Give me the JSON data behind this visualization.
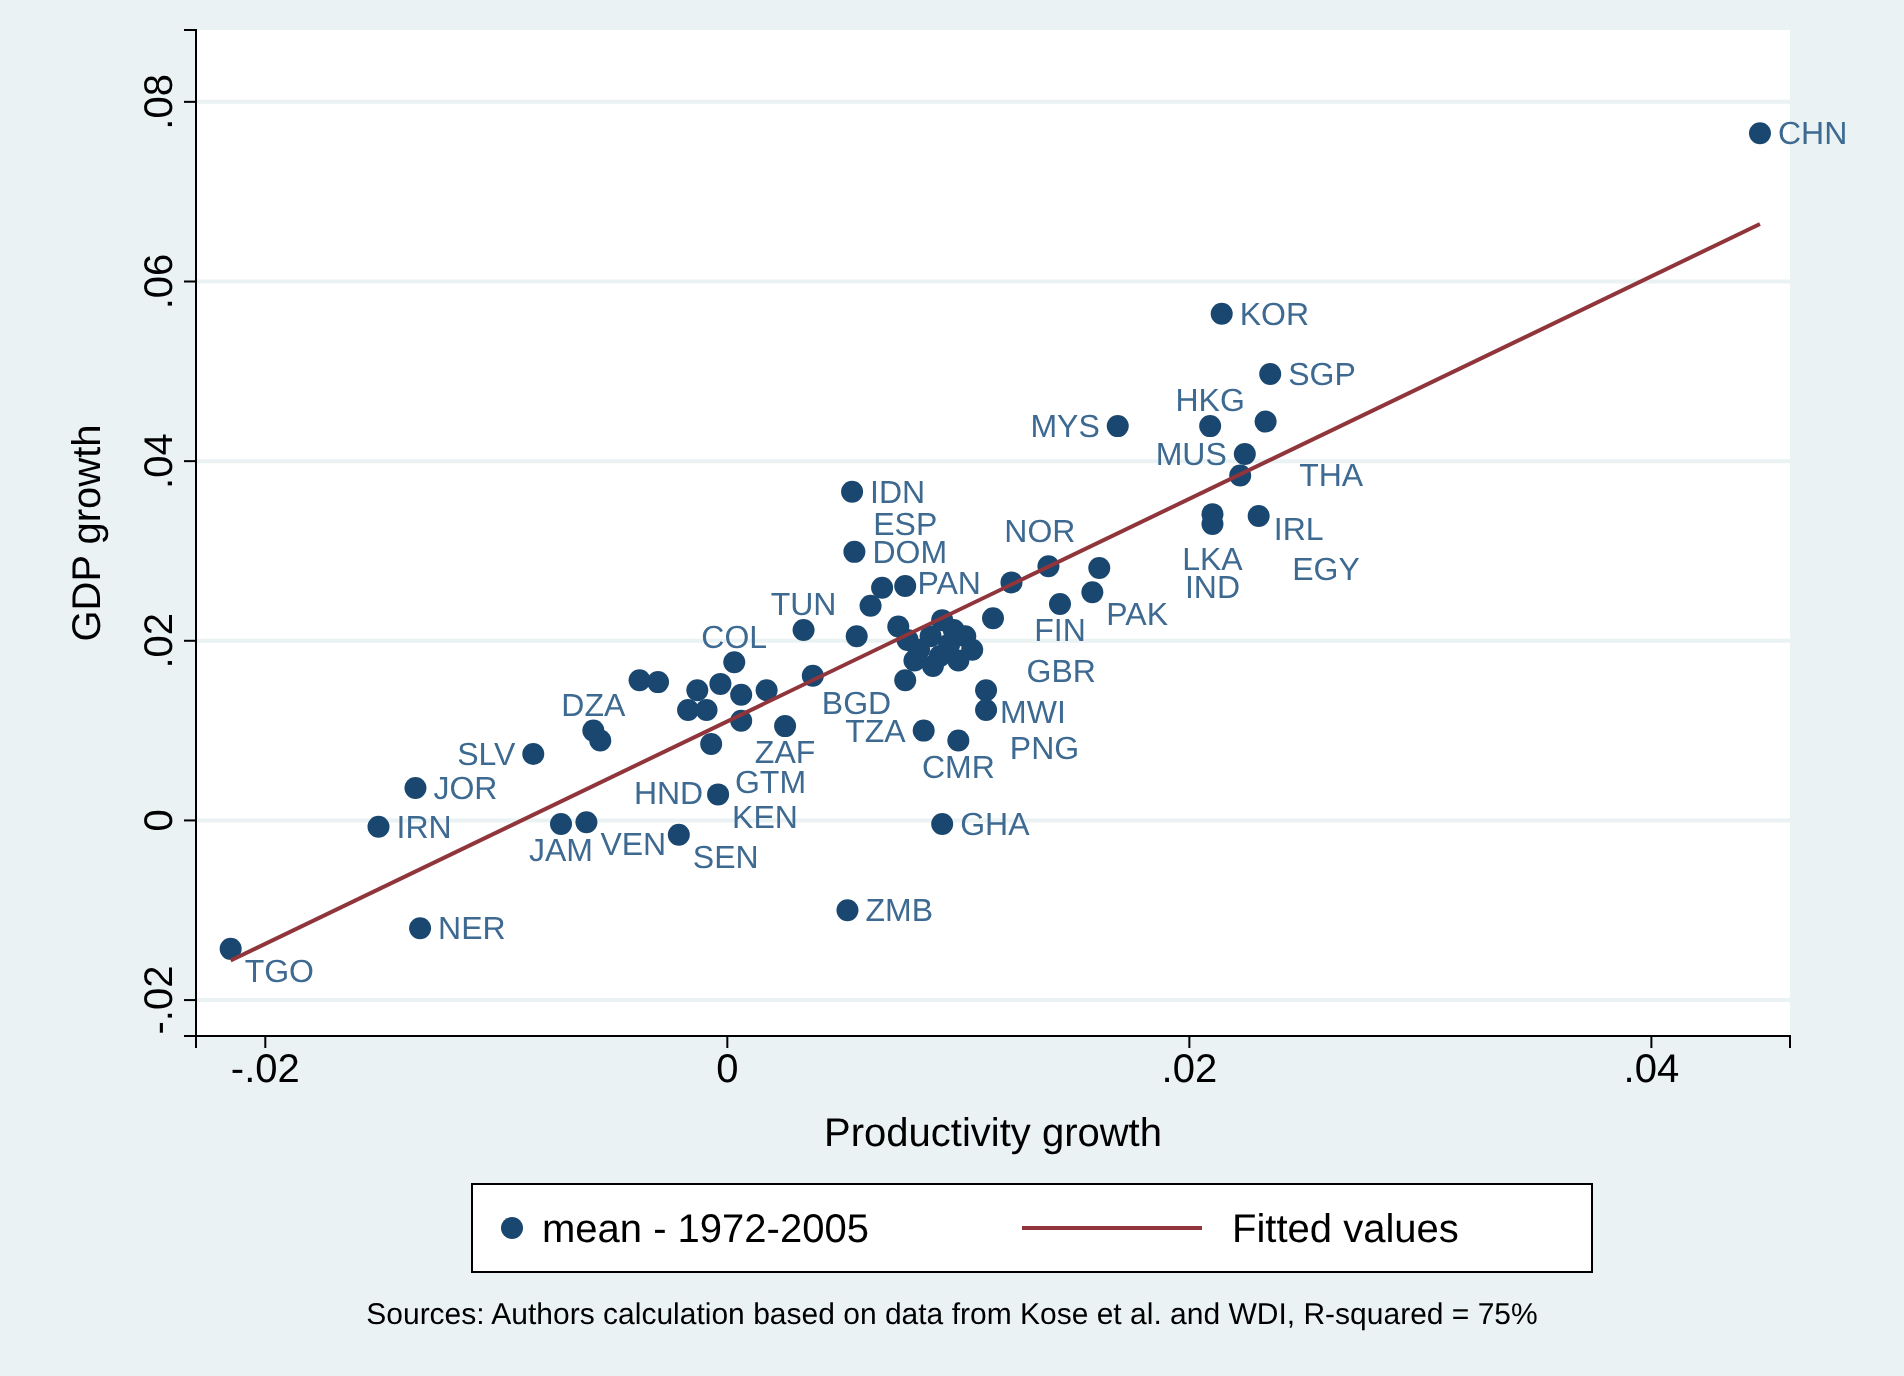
{
  "chart_data": {
    "type": "scatter",
    "xlabel": "Productivity growth",
    "ylabel": "GDP growth",
    "xlim": [
      -0.023,
      0.046
    ],
    "ylim": [
      -0.024,
      0.088
    ],
    "xticks": [
      {
        "value": -0.02,
        "label": "-.02"
      },
      {
        "value": 0,
        "label": "0"
      },
      {
        "value": 0.02,
        "label": ".02"
      },
      {
        "value": 0.04,
        "label": ".04"
      }
    ],
    "yticks": [
      {
        "value": -0.02,
        "label": "-.02"
      },
      {
        "value": 0,
        "label": "0"
      },
      {
        "value": 0.02,
        "label": ".02"
      },
      {
        "value": 0.04,
        "label": ".04"
      },
      {
        "value": 0.06,
        "label": ".06"
      },
      {
        "value": 0.08,
        "label": ".08"
      }
    ],
    "grid": "y",
    "legend": "bottom",
    "annotations": [
      "Sources: Authors calculation based on data from Kose et al. and WDI, R-squared = 75%"
    ],
    "series": [
      {
        "name": "mean - 1972-2005",
        "marker": "circle",
        "color": "#1a476f",
        "x": [
          0.0447,
          0.0214,
          0.0235,
          0.0169,
          0.0209,
          0.0233,
          0.0224,
          0.0222,
          0.021,
          0.021,
          0.023,
          0.0054,
          0.0055,
          0.0161,
          0.0139,
          0.0158,
          0.0123,
          0.0144,
          0.0115,
          0.0112,
          0.0112,
          0.01,
          0.0085,
          0.0077,
          0.0003,
          0.0025,
          -0.0058,
          -0.0055,
          -0.0007,
          -0.0004,
          -0.0084,
          -0.0135,
          -0.0151,
          -0.0215,
          -0.0133,
          -0.0072,
          -0.0061,
          -0.0021,
          0.0052,
          0.0093,
          0.0033,
          0.0056,
          0.0074,
          0.0062,
          0.0067,
          0.0077,
          0.0078,
          0.0083,
          0.0088,
          0.0092,
          0.0096,
          0.01,
          0.0089,
          0.0081,
          0.0103,
          0.0098,
          0.0093,
          0.0106,
          -0.0038,
          -0.003,
          -0.0013,
          -0.0003,
          0.0006,
          0.0017,
          0.0037,
          -0.0017,
          -0.0009,
          0.0006
        ],
        "values": [
          0.0765,
          0.0564,
          0.0497,
          0.0439,
          0.0439,
          0.0444,
          0.0408,
          0.0384,
          0.0341,
          0.033,
          0.0339,
          0.0366,
          0.0299,
          0.0281,
          0.0283,
          0.0254,
          0.0265,
          0.0241,
          0.0225,
          0.0145,
          0.0123,
          0.0089,
          0.01,
          0.0156,
          0.0176,
          0.0105,
          0.01,
          0.0089,
          0.0085,
          0.0029,
          0.0074,
          0.0036,
          -0.0007,
          -0.0143,
          -0.012,
          -0.0004,
          -0.0002,
          -0.0016,
          -0.01,
          -0.0004,
          0.0212,
          0.0205,
          0.0216,
          0.0239,
          0.0259,
          0.0261,
          0.0201,
          0.019,
          0.0205,
          0.0183,
          0.0196,
          0.0178,
          0.0172,
          0.0178,
          0.0205,
          0.0212,
          0.0223,
          0.019,
          0.0156,
          0.0154,
          0.0145,
          0.0152,
          0.014,
          0.0145,
          0.0161,
          0.0123,
          0.0123,
          0.0111
        ],
        "value_labels": [
          "CHN",
          "KOR",
          "SGP",
          "MYS",
          "HKG",
          "THA",
          "MUS",
          "IRL",
          "LKA",
          "IND",
          "EGY",
          "IDN",
          "DOM",
          "NOR",
          null,
          "PAK",
          "PAN",
          "FIN",
          "GBR",
          "MWI",
          "PNG",
          "CMR",
          "TZA",
          "BGD",
          "COL",
          "ZAF",
          "DZA",
          "HND",
          "GTM",
          "KEN",
          "SLV",
          "JOR",
          "IRN",
          "TGO",
          "NER",
          "JAM",
          "VEN",
          "SEN",
          "ZMB",
          "GHA",
          "TUN",
          null,
          null,
          null,
          null,
          "ESP",
          null,
          null,
          null,
          null,
          null,
          null,
          null,
          null,
          null,
          null,
          null,
          null,
          null,
          null,
          null,
          null,
          null,
          null,
          null,
          null,
          null,
          null
        ]
      },
      {
        "name": "Fitted values",
        "type": "line",
        "color": "#90353b",
        "x": [
          -0.0215,
          0.0447
        ],
        "values": [
          -0.0156,
          0.0664
        ]
      }
    ]
  }
}
